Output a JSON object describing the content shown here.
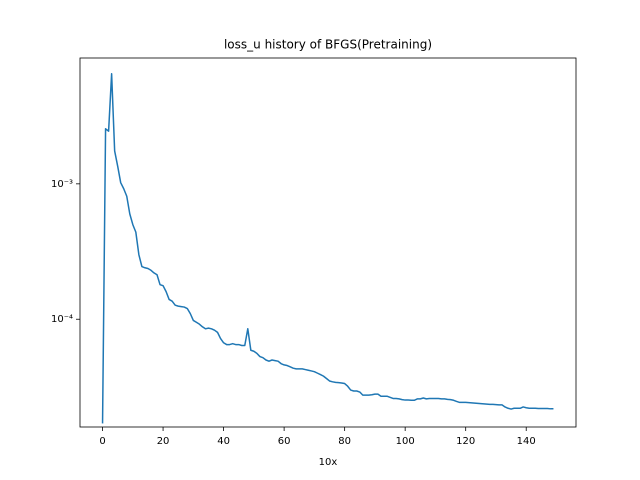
{
  "chart_data": {
    "type": "line",
    "title": "loss_u history of BFGS(Pretraining)",
    "x_label": "10x",
    "log_y": true,
    "xlim": [
      -7.45,
      156.45
    ],
    "xticks": [
      0,
      20,
      40,
      60,
      80,
      100,
      120,
      140
    ],
    "ylim": [
      1.6e-05,
      0.0085
    ],
    "yticks": [
      {
        "value": 0.001,
        "label": "10⁻³"
      },
      {
        "value": 0.0001,
        "label": "10⁻⁴"
      }
    ],
    "x": [
      0,
      1,
      2,
      3,
      4,
      5,
      6,
      7,
      8,
      9,
      10,
      11,
      12,
      13,
      14,
      15,
      16,
      17,
      18,
      19,
      20,
      21,
      22,
      23,
      24,
      25,
      26,
      27,
      28,
      29,
      30,
      31,
      32,
      33,
      34,
      35,
      36,
      37,
      38,
      39,
      40,
      41,
      42,
      43,
      44,
      45,
      46,
      47,
      48,
      49,
      50,
      51,
      52,
      53,
      54,
      55,
      56,
      57,
      58,
      59,
      60,
      61,
      62,
      63,
      64,
      65,
      66,
      67,
      68,
      69,
      70,
      71,
      72,
      73,
      74,
      75,
      76,
      77,
      78,
      79,
      80,
      81,
      82,
      83,
      84,
      85,
      86,
      87,
      88,
      89,
      90,
      91,
      92,
      93,
      94,
      95,
      96,
      97,
      98,
      99,
      100,
      101,
      102,
      103,
      104,
      105,
      106,
      107,
      108,
      109,
      110,
      111,
      112,
      113,
      114,
      115,
      116,
      117,
      118,
      119,
      120,
      121,
      122,
      123,
      124,
      125,
      126,
      127,
      128,
      129,
      130,
      131,
      132,
      133,
      134,
      135,
      136,
      137,
      138,
      139,
      140,
      141,
      142,
      143,
      144,
      145,
      146,
      147,
      148,
      149
    ],
    "series": [
      {
        "color": "#1f77b4",
        "values": [
          1.7e-05,
          0.00255,
          0.00245,
          0.0065,
          0.00175,
          0.00135,
          0.00102,
          0.00092,
          0.00081,
          0.0006,
          0.0005,
          0.00044,
          0.0003,
          0.000245,
          0.00024,
          0.000237,
          0.00023,
          0.00022,
          0.000213,
          0.00018,
          0.000177,
          0.00016,
          0.00014,
          0.000136,
          0.000127,
          0.000125,
          0.000124,
          0.000123,
          0.00012,
          0.00011,
          9.8e-05,
          9.5e-05,
          9.2e-05,
          8.8e-05,
          8.5e-05,
          8.6e-05,
          8.5e-05,
          8.3e-05,
          8e-05,
          7.2e-05,
          6.7e-05,
          6.5e-05,
          6.5e-05,
          6.6e-05,
          6.5e-05,
          6.5e-05,
          6.4e-05,
          6.4e-05,
          8.5e-05,
          5.9e-05,
          5.8e-05,
          5.6e-05,
          5.3e-05,
          5.2e-05,
          5e-05,
          4.9e-05,
          5e-05,
          4.95e-05,
          4.9e-05,
          4.7e-05,
          4.6e-05,
          4.55e-05,
          4.45e-05,
          4.35e-05,
          4.3e-05,
          4.3e-05,
          4.3e-05,
          4.25e-05,
          4.2e-05,
          4.15e-05,
          4.1e-05,
          4e-05,
          3.9e-05,
          3.8e-05,
          3.65e-05,
          3.5e-05,
          3.45e-05,
          3.42e-05,
          3.4e-05,
          3.38e-05,
          3.35e-05,
          3.2e-05,
          3e-05,
          2.95e-05,
          2.95e-05,
          2.9e-05,
          2.75e-05,
          2.75e-05,
          2.75e-05,
          2.77e-05,
          2.8e-05,
          2.8e-05,
          2.7e-05,
          2.7e-05,
          2.7e-05,
          2.65e-05,
          2.6e-05,
          2.6e-05,
          2.58e-05,
          2.55e-05,
          2.53e-05,
          2.53e-05,
          2.52e-05,
          2.52e-05,
          2.58e-05,
          2.58e-05,
          2.62e-05,
          2.58e-05,
          2.6e-05,
          2.6e-05,
          2.6e-05,
          2.6e-05,
          2.58e-05,
          2.58e-05,
          2.56e-05,
          2.55e-05,
          2.52e-05,
          2.47e-05,
          2.43e-05,
          2.43e-05,
          2.43e-05,
          2.42e-05,
          2.41e-05,
          2.4e-05,
          2.39e-05,
          2.38e-05,
          2.37e-05,
          2.36e-05,
          2.35e-05,
          2.35e-05,
          2.34e-05,
          2.33e-05,
          2.33e-05,
          2.25e-05,
          2.2e-05,
          2.17e-05,
          2.2e-05,
          2.2e-05,
          2.2e-05,
          2.25e-05,
          2.22e-05,
          2.2e-05,
          2.2e-05,
          2.2e-05,
          2.19e-05,
          2.19e-05,
          2.19e-05,
          2.19e-05,
          2.18e-05,
          2.18e-05
        ]
      }
    ]
  }
}
